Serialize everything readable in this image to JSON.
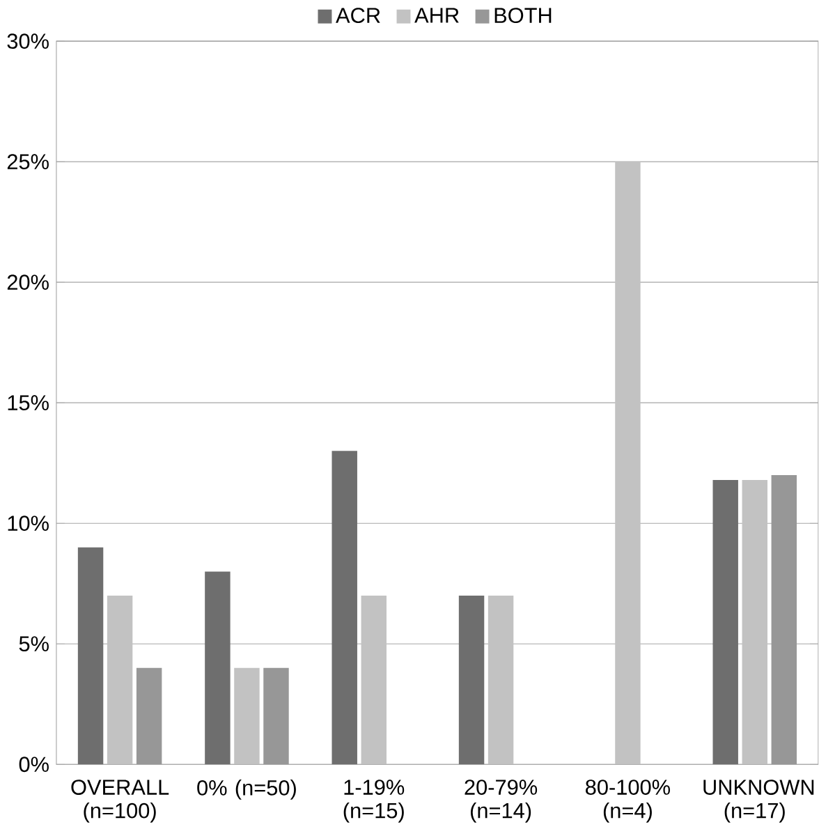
{
  "chart_data": {
    "type": "bar",
    "categories": [
      "OVERALL (n=100)",
      "0% (n=50)",
      "1-19% (n=15)",
      "20-79% (n=14)",
      "80-100% (n=4)",
      "UNKNOWN (n=17)"
    ],
    "series": [
      {
        "name": "ACR",
        "color": "#6e6e6e",
        "values": [
          9,
          8,
          13,
          7,
          null,
          11.8
        ]
      },
      {
        "name": "AHR",
        "color": "#c2c2c2",
        "values": [
          7,
          4,
          7,
          7,
          25,
          11.8
        ]
      },
      {
        "name": "BOTH",
        "color": "#979797",
        "values": [
          4,
          4,
          null,
          null,
          null,
          12
        ]
      }
    ],
    "ylim": [
      0,
      30
    ],
    "yticks": [
      {
        "value": 0,
        "label": "0%"
      },
      {
        "value": 5,
        "label": "5%"
      },
      {
        "value": 10,
        "label": "10%"
      },
      {
        "value": 15,
        "label": "15%"
      },
      {
        "value": 20,
        "label": "20%"
      },
      {
        "value": 25,
        "label": "25%"
      },
      {
        "value": 30,
        "label": "30%"
      }
    ],
    "grid": "y",
    "legend": "top"
  }
}
